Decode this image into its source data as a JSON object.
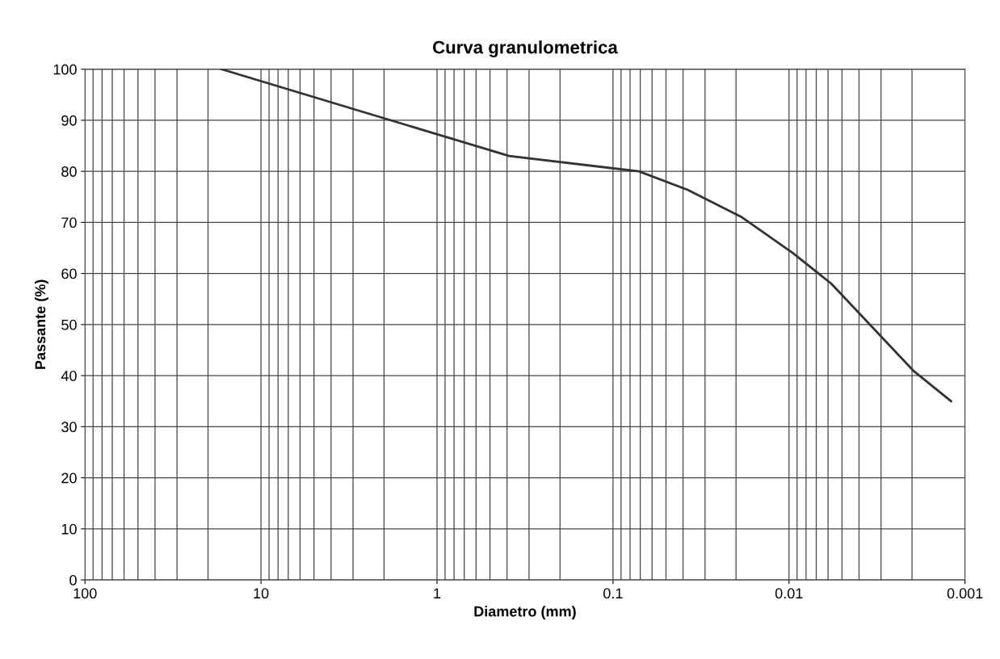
{
  "chart_data": {
    "type": "line",
    "title": "Curva granulometrica",
    "xlabel": "Diametro (mm)",
    "ylabel": "Passante (%)",
    "log": "x",
    "grid": true,
    "marker": "none",
    "line_style": "solid",
    "xlim": [
      100,
      0.001
    ],
    "xticks": [
      100,
      10,
      1,
      0.1,
      0.01,
      0.001
    ],
    "ylim": [
      0,
      100
    ],
    "yticks": [
      0,
      10,
      20,
      30,
      40,
      50,
      60,
      70,
      80,
      90,
      100
    ],
    "x": [
      16.8,
      0.389,
      0.0713,
      0.0377,
      0.0185,
      0.0095,
      0.00575,
      0.00197,
      0.0012
    ],
    "series": [
      {
        "color": "#333333",
        "values": [
          100,
          83,
          80,
          76.4,
          71,
          64,
          58,
          41,
          35
        ]
      }
    ]
  }
}
